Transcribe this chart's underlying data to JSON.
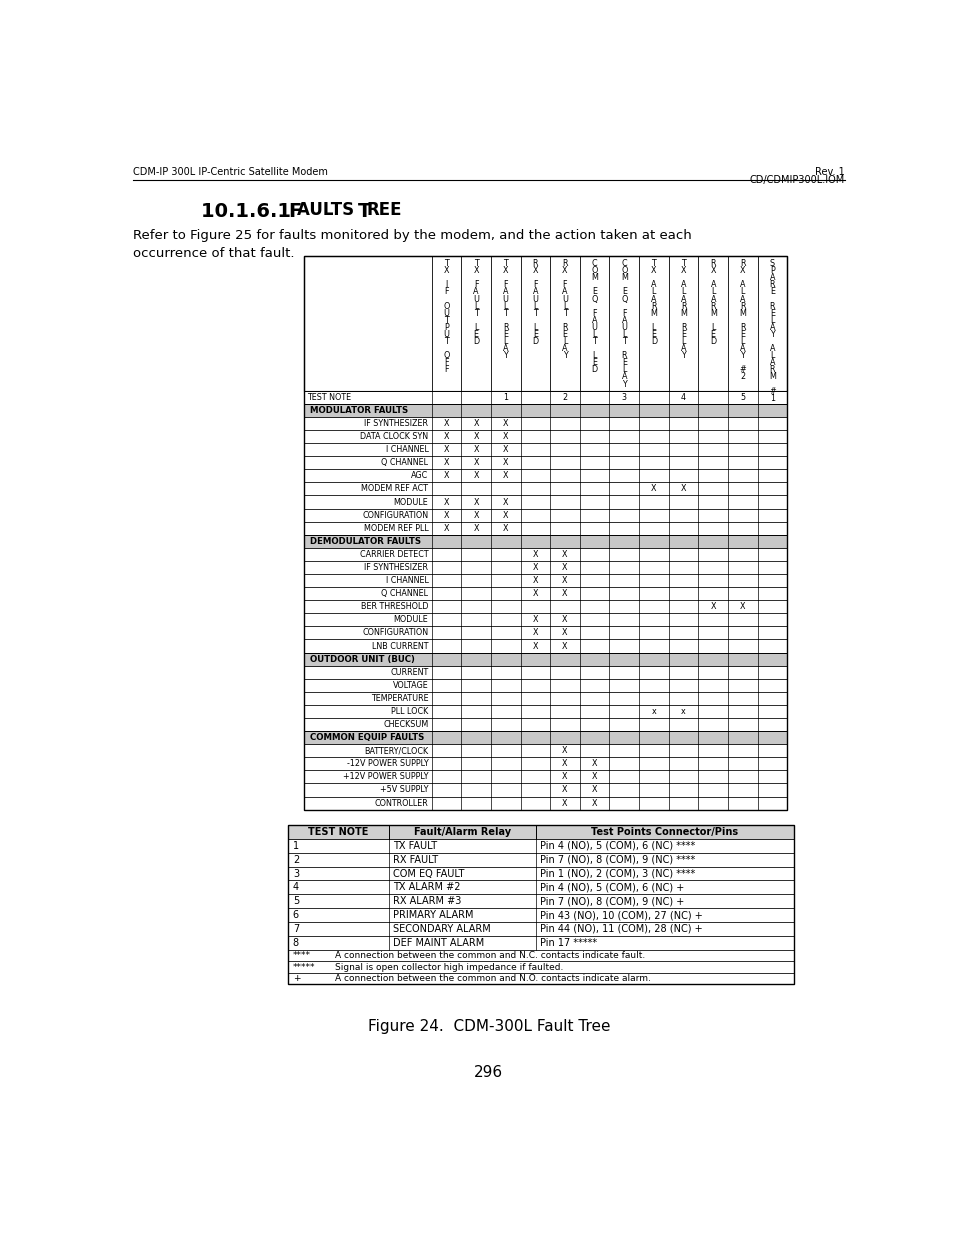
{
  "page_header_left": "CDM-IP 300L IP-Centric Satellite Modem",
  "page_header_right": "Rev. 1\nCD/CDMIP300L.IOM",
  "intro_text": "Refer to Figure 25 for faults monitored by the modem, and the action taken at each\noccurrence of that fault.",
  "figure_caption": "Figure 24.  CDM-300L Fault Tree",
  "page_number": "296",
  "col_header_lines": [
    [
      "T",
      "X",
      "",
      "I",
      "F",
      "",
      "O",
      "U",
      "T",
      "P",
      "U",
      "T",
      "",
      "O",
      "F",
      "F"
    ],
    [
      "T",
      "X",
      "",
      "F",
      "A",
      "U",
      "L",
      "T",
      "",
      "L",
      "E",
      "D"
    ],
    [
      "T",
      "X",
      "",
      "F",
      "A",
      "U",
      "L",
      "T",
      "",
      "R",
      "E",
      "L",
      "A",
      "Y"
    ],
    [
      "R",
      "X",
      "",
      "F",
      "A",
      "U",
      "L",
      "T",
      "",
      "L",
      "E",
      "D"
    ],
    [
      "R",
      "X",
      "",
      "F",
      "A",
      "U",
      "L",
      "T",
      "",
      "R",
      "E",
      "L",
      "A",
      "Y"
    ],
    [
      "C",
      "O",
      "M",
      "",
      "E",
      "Q",
      "",
      "F",
      "A",
      "U",
      "L",
      "T",
      "",
      "L",
      "E",
      "D"
    ],
    [
      "C",
      "O",
      "M",
      "",
      "E",
      "Q",
      "",
      "F",
      "A",
      "U",
      "L",
      "T",
      "",
      "R",
      "E",
      "L",
      "A",
      "Y"
    ],
    [
      "T",
      "X",
      "",
      "A",
      "L",
      "A",
      "R",
      "M",
      "",
      "L",
      "E",
      "D"
    ],
    [
      "T",
      "X",
      "",
      "A",
      "L",
      "A",
      "R",
      "M",
      "",
      "R",
      "E",
      "L",
      "A",
      "Y"
    ],
    [
      "R",
      "X",
      "",
      "A",
      "L",
      "A",
      "R",
      "M",
      "",
      "L",
      "E",
      "D"
    ],
    [
      "R",
      "X",
      "",
      "A",
      "L",
      "A",
      "R",
      "M",
      "",
      "R",
      "E",
      "L",
      "A",
      "Y",
      "",
      "#",
      "2"
    ],
    [
      "S",
      "P",
      "A",
      "R",
      "E",
      "",
      "R",
      "E",
      "L",
      "A",
      "Y",
      "",
      "A",
      "L",
      "A",
      "R",
      "M",
      "",
      "#",
      "1"
    ]
  ],
  "test_note_cols": [
    "",
    "",
    "1",
    "",
    "2",
    "",
    "3",
    "",
    "4",
    "",
    "5",
    ""
  ],
  "row_groups": [
    {
      "header": "MODULATOR FAULTS",
      "rows": [
        {
          "label": "IF SYNTHESIZER",
          "marks": [
            1,
            1,
            1,
            0,
            0,
            0,
            0,
            0,
            0,
            0,
            0,
            0
          ]
        },
        {
          "label": "DATA CLOCK SYN",
          "marks": [
            1,
            1,
            1,
            0,
            0,
            0,
            0,
            0,
            0,
            0,
            0,
            0
          ]
        },
        {
          "label": "I CHANNEL",
          "marks": [
            1,
            1,
            1,
            0,
            0,
            0,
            0,
            0,
            0,
            0,
            0,
            0
          ]
        },
        {
          "label": "Q CHANNEL",
          "marks": [
            1,
            1,
            1,
            0,
            0,
            0,
            0,
            0,
            0,
            0,
            0,
            0
          ]
        },
        {
          "label": "AGC",
          "marks": [
            1,
            1,
            1,
            0,
            0,
            0,
            0,
            0,
            0,
            0,
            0,
            0
          ]
        },
        {
          "label": "MODEM REF ACT",
          "marks": [
            0,
            0,
            0,
            0,
            0,
            0,
            0,
            1,
            1,
            0,
            0,
            0
          ]
        },
        {
          "label": "MODULE",
          "marks": [
            1,
            1,
            1,
            0,
            0,
            0,
            0,
            0,
            0,
            0,
            0,
            0
          ]
        },
        {
          "label": "CONFIGURATION",
          "marks": [
            1,
            1,
            1,
            0,
            0,
            0,
            0,
            0,
            0,
            0,
            0,
            0
          ]
        },
        {
          "label": "MODEM REF PLL",
          "marks": [
            1,
            1,
            1,
            0,
            0,
            0,
            0,
            0,
            0,
            0,
            0,
            0
          ]
        }
      ]
    },
    {
      "header": "DEMODULATOR FAULTS",
      "rows": [
        {
          "label": "CARRIER DETECT",
          "marks": [
            0,
            0,
            0,
            1,
            1,
            0,
            0,
            0,
            0,
            0,
            0,
            0
          ]
        },
        {
          "label": "IF SYNTHESIZER",
          "marks": [
            0,
            0,
            0,
            1,
            1,
            0,
            0,
            0,
            0,
            0,
            0,
            0
          ]
        },
        {
          "label": "I CHANNEL",
          "marks": [
            0,
            0,
            0,
            1,
            1,
            0,
            0,
            0,
            0,
            0,
            0,
            0
          ]
        },
        {
          "label": "Q CHANNEL",
          "marks": [
            0,
            0,
            0,
            1,
            1,
            0,
            0,
            0,
            0,
            0,
            0,
            0
          ]
        },
        {
          "label": "BER THRESHOLD",
          "marks": [
            0,
            0,
            0,
            0,
            0,
            0,
            0,
            0,
            0,
            1,
            1,
            0
          ]
        },
        {
          "label": "MODULE",
          "marks": [
            0,
            0,
            0,
            1,
            1,
            0,
            0,
            0,
            0,
            0,
            0,
            0
          ]
        },
        {
          "label": "CONFIGURATION",
          "marks": [
            0,
            0,
            0,
            1,
            1,
            0,
            0,
            0,
            0,
            0,
            0,
            0
          ]
        },
        {
          "label": "LNB CURRENT",
          "marks": [
            0,
            0,
            0,
            1,
            1,
            0,
            0,
            0,
            0,
            0,
            0,
            0
          ]
        }
      ]
    },
    {
      "header": "OUTDOOR UNIT (BUC)",
      "rows": [
        {
          "label": "CURRENT",
          "marks": [
            0,
            0,
            0,
            0,
            0,
            0,
            0,
            0,
            0,
            0,
            0,
            0
          ]
        },
        {
          "label": "VOLTAGE",
          "marks": [
            0,
            0,
            0,
            0,
            0,
            0,
            0,
            0,
            0,
            0,
            0,
            0
          ]
        },
        {
          "label": "TEMPERATURE",
          "marks": [
            0,
            0,
            0,
            0,
            0,
            0,
            0,
            0,
            0,
            0,
            0,
            0
          ]
        },
        {
          "label": "PLL LOCK",
          "marks": [
            0,
            0,
            0,
            0,
            0,
            0,
            0,
            2,
            2,
            0,
            0,
            0
          ]
        },
        {
          "label": "CHECKSUM",
          "marks": [
            0,
            0,
            0,
            0,
            0,
            0,
            0,
            0,
            0,
            0,
            0,
            0
          ]
        }
      ]
    },
    {
      "header": "COMMON EQUIP FAULTS",
      "rows": [
        {
          "label": "BATTERY/CLOCK",
          "marks": [
            0,
            0,
            0,
            0,
            1,
            0,
            0,
            0,
            0,
            0,
            0,
            0
          ]
        },
        {
          "label": "-12V POWER SUPPLY",
          "marks": [
            0,
            0,
            0,
            0,
            1,
            1,
            0,
            0,
            0,
            0,
            0,
            0
          ]
        },
        {
          "label": "+12V POWER SUPPLY",
          "marks": [
            0,
            0,
            0,
            0,
            1,
            1,
            0,
            0,
            0,
            0,
            0,
            0
          ]
        },
        {
          "label": "+5V SUPPLY",
          "marks": [
            0,
            0,
            0,
            0,
            1,
            1,
            0,
            0,
            0,
            0,
            0,
            0
          ]
        },
        {
          "label": "CONTROLLER",
          "marks": [
            0,
            0,
            0,
            0,
            1,
            1,
            0,
            0,
            0,
            0,
            0,
            0
          ]
        }
      ]
    }
  ],
  "bottom_table_headers": [
    "TEST NOTE",
    "Fault/Alarm Relay",
    "Test Points Connector/Pins"
  ],
  "bottom_table_rows": [
    [
      "1",
      "TX FAULT",
      "Pin 4 (NO), 5 (COM), 6 (NC) ****"
    ],
    [
      "2",
      "RX FAULT",
      "Pin 7 (NO), 8 (COM), 9 (NC) ****"
    ],
    [
      "3",
      "COM EQ FAULT",
      "Pin 1 (NO), 2 (COM), 3 (NC) ****"
    ],
    [
      "4",
      "TX ALARM #2",
      "Pin 4 (NO), 5 (COM), 6 (NC) +"
    ],
    [
      "5",
      "RX ALARM #3",
      "Pin 7 (NO), 8 (COM), 9 (NC) +"
    ],
    [
      "6",
      "PRIMARY ALARM",
      "Pin 43 (NO), 10 (COM), 27 (NC) +"
    ],
    [
      "7",
      "SECONDARY ALARM",
      "Pin 44 (NO), 11 (COM), 28 (NC) +"
    ],
    [
      "8",
      "DEF MAINT ALARM",
      "Pin 17 *****"
    ]
  ],
  "bottom_notes": [
    [
      "****",
      "A connection between the common and N.C. contacts indicate fault."
    ],
    [
      "*****",
      "Signal is open collector high impedance if faulted."
    ],
    [
      "+",
      "A connection between the common and N.O. contacts indicate alarm."
    ]
  ],
  "header_gray": "#c8c8c8",
  "bottom_header_gray": "#d0d0d0"
}
